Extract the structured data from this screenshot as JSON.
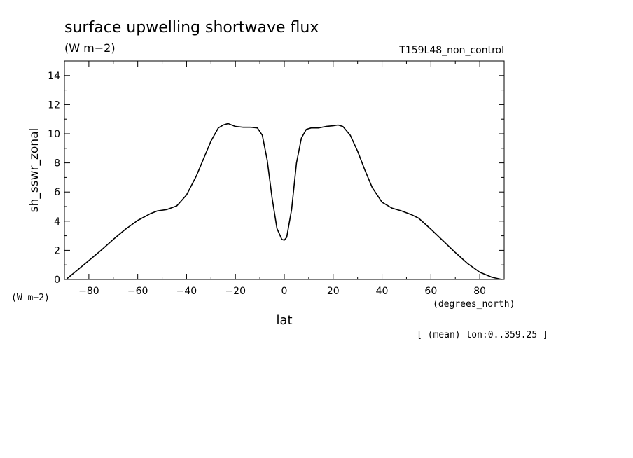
{
  "chart_data": {
    "type": "line",
    "title": "surface upwelling shortwave flux",
    "units_label": "(W m−2)",
    "run_label": "T159L48_non_control",
    "ylabel": "sh_sswr_zonal",
    "y_units_label": "(W m−2)",
    "xlabel": "lat",
    "x_units_label": "(degrees_north)",
    "footnote": "[ (mean) lon:0..359.25 ]",
    "xlim": [
      -90,
      90
    ],
    "ylim": [
      0,
      15
    ],
    "x_ticks": [
      -80,
      -60,
      -40,
      -20,
      0,
      20,
      40,
      60,
      80
    ],
    "x_tick_labels": [
      "−80",
      "−60",
      "−40",
      "−20",
      "0",
      "20",
      "40",
      "60",
      "80"
    ],
    "y_ticks": [
      0,
      2,
      4,
      6,
      8,
      10,
      12,
      14
    ],
    "y_tick_labels": [
      "0",
      "2",
      "4",
      "6",
      "8",
      "10",
      "12",
      "14"
    ],
    "grid": false,
    "series": [
      {
        "x": [
          -89,
          -85,
          -80,
          -75,
          -70,
          -65,
          -60,
          -55,
          -52,
          -48,
          -44,
          -40,
          -36,
          -33,
          -30,
          -27,
          -25,
          -23,
          -20,
          -17,
          -14,
          -11,
          -9,
          -7,
          -5,
          -3,
          -1,
          0,
          1,
          3,
          5,
          7,
          9,
          11,
          14,
          17,
          20,
          22,
          24,
          27,
          30,
          33,
          36,
          40,
          44,
          48,
          52,
          55,
          60,
          65,
          70,
          75,
          80,
          85,
          89
        ],
        "y": [
          0.05,
          0.6,
          1.3,
          2.0,
          2.75,
          3.45,
          4.05,
          4.5,
          4.7,
          4.8,
          5.05,
          5.8,
          7.1,
          8.3,
          9.5,
          10.4,
          10.6,
          10.7,
          10.5,
          10.45,
          10.45,
          10.4,
          9.9,
          8.2,
          5.6,
          3.5,
          2.75,
          2.7,
          2.9,
          4.8,
          8.0,
          9.7,
          10.3,
          10.4,
          10.4,
          10.5,
          10.55,
          10.6,
          10.5,
          9.9,
          8.8,
          7.5,
          6.3,
          5.3,
          4.9,
          4.7,
          4.45,
          4.2,
          3.45,
          2.65,
          1.85,
          1.1,
          0.5,
          0.15,
          0.0
        ]
      }
    ]
  }
}
